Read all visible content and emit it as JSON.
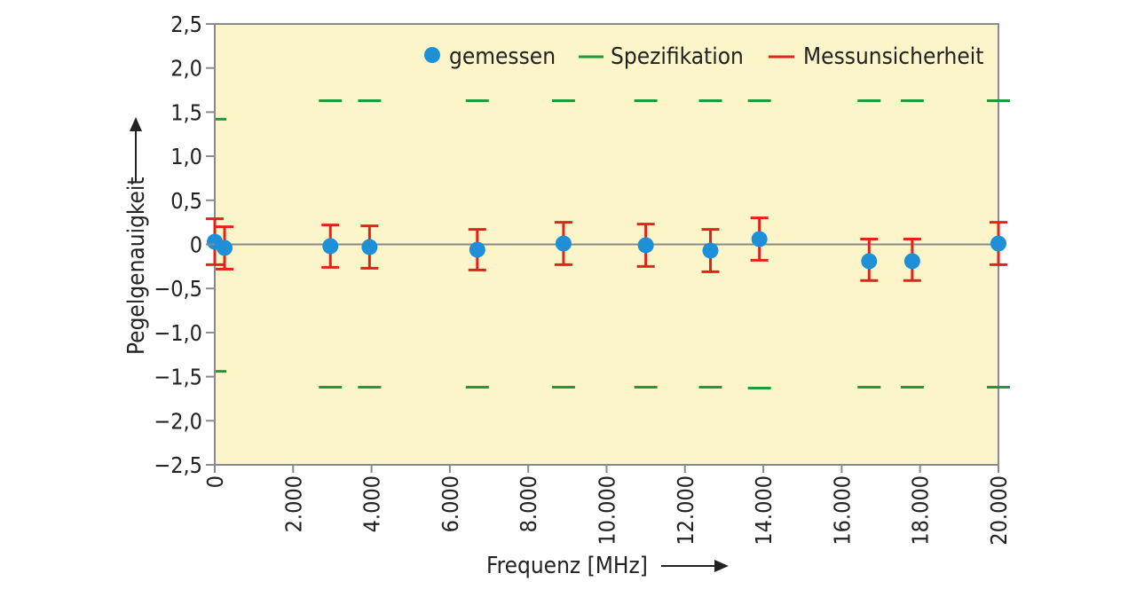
{
  "chart_data": {
    "type": "scatter",
    "xlabel": "Frequenz [MHz]",
    "ylabel": "Pegelgenauigkeit",
    "xlim": [
      0,
      20000
    ],
    "ylim": [
      -2.5,
      2.5
    ],
    "x_ticks": [
      {
        "value": 0,
        "label": "0"
      },
      {
        "value": 2000,
        "label": "2.000"
      },
      {
        "value": 4000,
        "label": "4.000"
      },
      {
        "value": 6000,
        "label": "6.000"
      },
      {
        "value": 8000,
        "label": "8.000"
      },
      {
        "value": 10000,
        "label": "10.000"
      },
      {
        "value": 12000,
        "label": "12.000"
      },
      {
        "value": 14000,
        "label": "14.000"
      },
      {
        "value": 16000,
        "label": "16.000"
      },
      {
        "value": 18000,
        "label": "18.000"
      },
      {
        "value": 20000,
        "label": "20.000"
      }
    ],
    "y_ticks": [
      {
        "value": 2.5,
        "label": "2,5"
      },
      {
        "value": 2.0,
        "label": "2,0"
      },
      {
        "value": 1.5,
        "label": "1,5"
      },
      {
        "value": 1.0,
        "label": "1,0"
      },
      {
        "value": 0.5,
        "label": "0,5"
      },
      {
        "value": 0,
        "label": "0"
      },
      {
        "value": -0.5,
        "label": "−0,5"
      },
      {
        "value": -1.0,
        "label": "−1,0"
      },
      {
        "value": -1.5,
        "label": "−1,5"
      },
      {
        "value": -2.0,
        "label": "−2,0"
      },
      {
        "value": -2.5,
        "label": "−2,5"
      }
    ],
    "legend": {
      "placement": "top-right",
      "entries": [
        {
          "label": "gemessen",
          "symbol": "dot",
          "color": "#1e90d8"
        },
        {
          "label": "Spezifikation",
          "symbol": "dash",
          "color": "#1c9a3c"
        },
        {
          "label": "Messunsicherheit",
          "symbol": "dash",
          "color": "#e2231a"
        }
      ]
    },
    "series": [
      {
        "name": "gemessen",
        "x": [
          0,
          250,
          2950,
          3950,
          6700,
          8900,
          11000,
          12650,
          13900,
          16700,
          17800,
          20000
        ],
        "y": [
          0.03,
          -0.04,
          -0.02,
          -0.03,
          -0.06,
          0.01,
          -0.01,
          -0.07,
          0.06,
          -0.19,
          -0.19,
          0.01
        ],
        "err_low": [
          0.26,
          0.24,
          0.24,
          0.24,
          0.23,
          0.24,
          0.24,
          0.24,
          0.24,
          0.22,
          0.22,
          0.24
        ],
        "err_high": [
          0.26,
          0.24,
          0.24,
          0.24,
          0.23,
          0.24,
          0.24,
          0.24,
          0.24,
          0.25,
          0.25,
          0.24
        ]
      },
      {
        "name": "Spezifikation",
        "x": [
          0,
          2950,
          3950,
          6700,
          8900,
          11000,
          12650,
          13900,
          16700,
          17800,
          20000
        ],
        "upper": [
          1.42,
          1.63,
          1.63,
          1.63,
          1.63,
          1.63,
          1.63,
          1.63,
          1.63,
          1.63,
          1.63
        ],
        "lower": [
          -1.44,
          -1.62,
          -1.62,
          -1.62,
          -1.62,
          -1.62,
          -1.62,
          -1.63,
          -1.62,
          -1.62,
          -1.62
        ]
      }
    ],
    "grid": false,
    "colors": {
      "plot_background": "#fcf5c9",
      "axis": "#8a8a8a",
      "zero_line": "#8a8a8a",
      "measured": "#1e90d8",
      "specification": "#1c9a3c",
      "uncertainty": "#e2231a"
    }
  }
}
